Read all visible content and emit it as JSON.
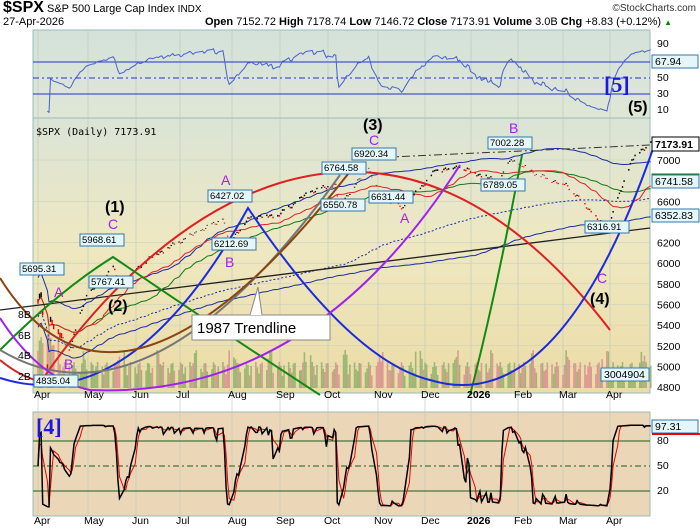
{
  "header": {
    "symbol": "$SPX",
    "name": "S&P 500 Large Cap Index",
    "exchange": "INDX",
    "date": "27-Apr-2026",
    "source": "©StockCharts.com",
    "open_label": "Open",
    "open": "7152.72",
    "high_label": "High",
    "high": "7178.74",
    "low_label": "Low",
    "low": "7146.72",
    "close_label": "Close",
    "close": "7173.91",
    "volume_label": "Volume",
    "volume": "3.0B",
    "chg_label": "Chg",
    "chg": "+8.83 (+0.12%)",
    "up_arrow": "▲"
  },
  "colors": {
    "up": "#000000",
    "down": "#e00000",
    "wave": "#a020f0",
    "counts": "#1a1adf"
  },
  "chart_data": [
    {
      "type": "line",
      "title": "RSI",
      "yticks": [
        "90",
        "50",
        "30",
        "10"
      ],
      "last_value": "67.94",
      "label": "[5]",
      "ylim": [
        0,
        100
      ]
    },
    {
      "type": "candlestick",
      "title": "$SPX (Daily) 7173.91",
      "ylim": [
        4700,
        7250
      ],
      "yticks": [
        "7000",
        "6600",
        "6200",
        "6000",
        "5800",
        "5600",
        "5400",
        "5200",
        "5000",
        "4800"
      ],
      "value_tags": [
        "7173.91",
        "6741.58",
        "6352.83",
        "3004904"
      ],
      "volume_ticks": [
        "8B",
        "6B",
        "4B",
        "2B"
      ],
      "xticks": [
        "Apr",
        "May",
        "Jun",
        "Jul",
        "Aug",
        "Sep",
        "Oct",
        "Nov",
        "Dec",
        "2026",
        "Feb",
        "Mar",
        "Apr"
      ],
      "keypoints": [
        [
          "2025-04-01",
          5630
        ],
        [
          "2025-04-03",
          5695.31
        ],
        [
          "2025-04-08",
          4835.04
        ],
        [
          "2025-04-09",
          5456
        ],
        [
          "2025-04-21",
          5158
        ],
        [
          "2025-05-02",
          5686
        ],
        [
          "2025-05-12",
          5844
        ],
        [
          "2025-05-19",
          5968.61
        ],
        [
          "2025-05-23",
          5767.41
        ],
        [
          "2025-06-10",
          6038
        ],
        [
          "2025-06-30",
          6205
        ],
        [
          "2025-07-28",
          6427.02
        ],
        [
          "2025-08-01",
          6212.69
        ],
        [
          "2025-08-15",
          6449
        ],
        [
          "2025-09-01",
          6460
        ],
        [
          "2025-09-22",
          6693
        ],
        [
          "2025-10-08",
          6764.58
        ],
        [
          "2025-10-10",
          6550.78
        ],
        [
          "2025-10-29",
          6920.34
        ],
        [
          "2025-11-06",
          6631.44
        ],
        [
          "2025-11-20",
          6538
        ],
        [
          "2025-12-11",
          6901
        ],
        [
          "2025-12-26",
          6930
        ],
        [
          "2026-01-20",
          6789.05
        ],
        [
          "2026-01-28",
          7002.28
        ],
        [
          "2026-02-15",
          6850
        ],
        [
          "2026-03-05",
          6750
        ],
        [
          "2026-03-20",
          6500
        ],
        [
          "2026-03-30",
          6316.91
        ],
        [
          "2026-04-08",
          6700
        ],
        [
          "2026-04-15",
          7000
        ],
        [
          "2026-04-27",
          7173.91
        ]
      ],
      "price_labels": [
        "5695.31",
        "4835.04",
        "5968.61",
        "5767.41",
        "6427.02",
        "6212.69",
        "6764.58",
        "6550.78",
        "6920.34",
        "6631.44",
        "6789.05",
        "7002.28",
        "6316.91"
      ],
      "waves": {
        "w1": "(1)",
        "w2": "(2)",
        "w3": "(3)",
        "w4": "(4)",
        "w5": "(5)",
        "a": "A",
        "b": "B",
        "c": "C"
      },
      "annotation": "1987 Trendline"
    },
    {
      "type": "line",
      "title": "Stochastic",
      "yticks": [
        "80",
        "50",
        "20"
      ],
      "last_value": "97.31",
      "label": "[4]",
      "ylim": [
        0,
        100
      ]
    }
  ]
}
